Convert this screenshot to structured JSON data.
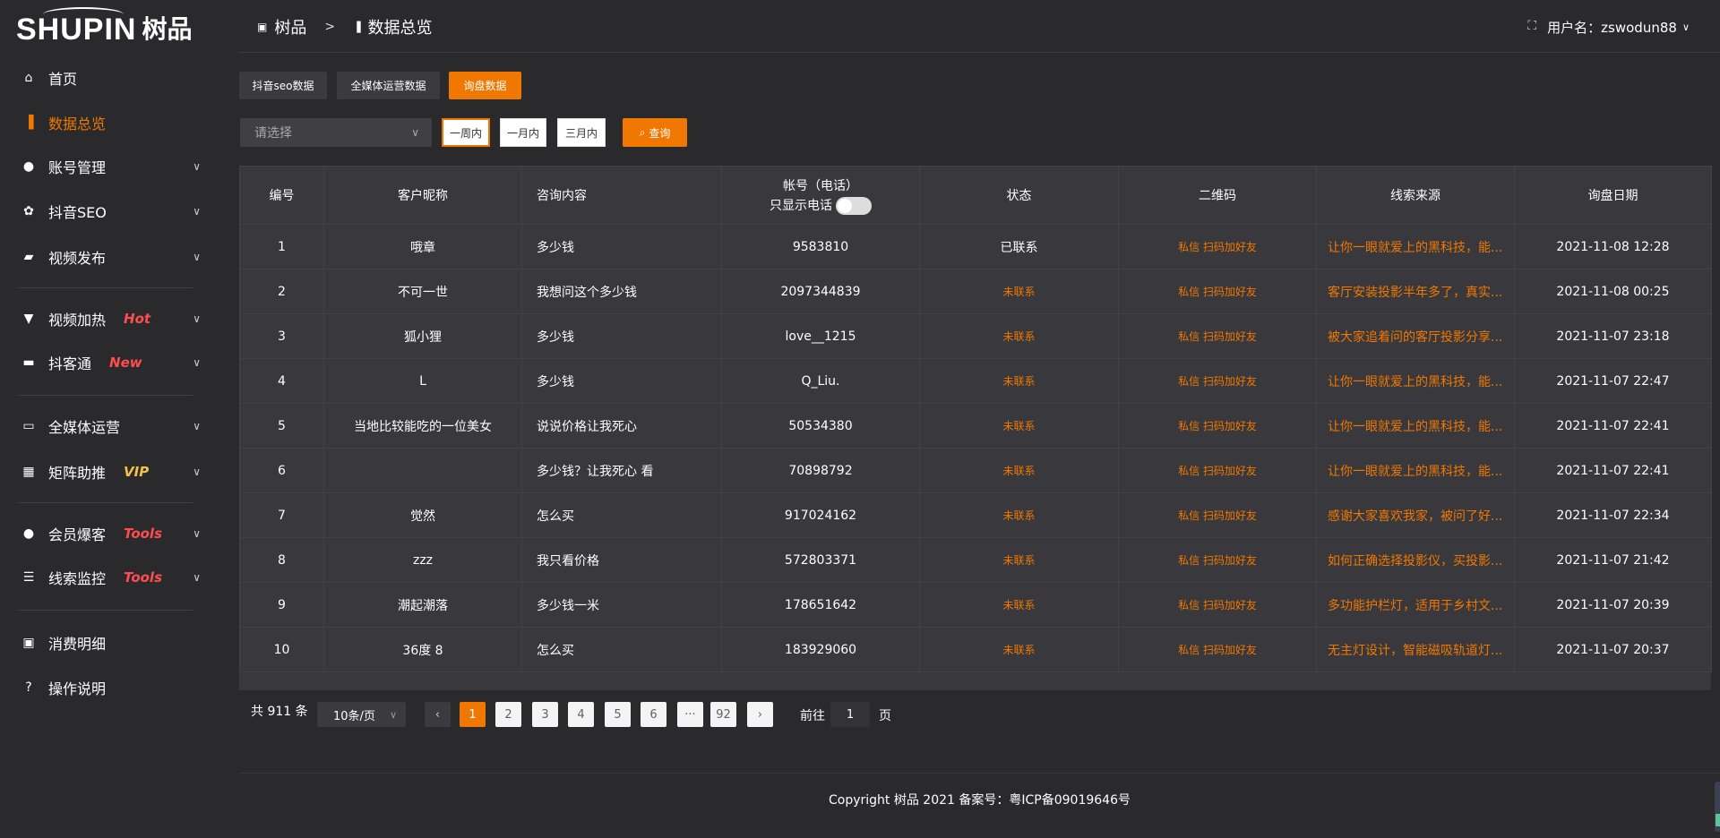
{
  "brand": {
    "logo_en": "SHUPIN",
    "logo_cn": "树品"
  },
  "breadcrumb": {
    "root": "树品",
    "separator": ">",
    "current": "数据总览"
  },
  "header": {
    "username_label": "用户名：zswodun88",
    "fullscreen_icon": "fullscreen-icon"
  },
  "sidebar": {
    "items": [
      {
        "label": "首页",
        "icon": "home-icon",
        "glyph": "⌂",
        "badge": "",
        "chevron": false,
        "active": false
      },
      {
        "label": "数据总览",
        "icon": "bar-chart-icon",
        "glyph": "▐",
        "badge": "",
        "chevron": false,
        "active": true
      },
      {
        "label": "账号管理",
        "icon": "user-icon",
        "glyph": "●",
        "badge": "",
        "chevron": true,
        "active": false
      },
      {
        "label": "抖音SEO",
        "icon": "gear-icon",
        "glyph": "✿",
        "badge": "",
        "chevron": true,
        "active": false
      },
      {
        "label": "视频发布",
        "icon": "video-camera-icon",
        "glyph": "▰",
        "badge": "",
        "chevron": true,
        "active": false
      },
      {
        "label": "视频加热",
        "icon": "billboard-icon",
        "glyph": "▼",
        "badge": "Hot",
        "badge_color": "#ff4d4f",
        "chevron": true,
        "active": false
      },
      {
        "label": "抖客通",
        "icon": "chat-icon",
        "glyph": "▬",
        "badge": "New",
        "badge_color": "#ff4d4f",
        "chevron": true,
        "active": false
      },
      {
        "label": "全媒体运营",
        "icon": "monitor-icon",
        "glyph": "▭",
        "badge": "",
        "chevron": true,
        "active": false
      },
      {
        "label": "矩阵助推",
        "icon": "grid-icon",
        "glyph": "▦",
        "badge": "VIP",
        "badge_color": "#f5c242",
        "chevron": true,
        "active": false
      },
      {
        "label": "会员爆客",
        "icon": "user-icon",
        "glyph": "●",
        "badge": "Tools",
        "badge_color": "#ff4d4f",
        "chevron": true,
        "active": false
      },
      {
        "label": "线索监控",
        "icon": "sliders-icon",
        "glyph": "☰",
        "badge": "Tools",
        "badge_color": "#ff4d4f",
        "chevron": true,
        "active": false
      },
      {
        "label": "消费明细",
        "icon": "wallet-icon",
        "glyph": "▣",
        "badge": "",
        "chevron": false,
        "active": false
      },
      {
        "label": "操作说明",
        "icon": "help-circle-icon",
        "glyph": "?",
        "badge": "",
        "chevron": false,
        "active": false
      }
    ]
  },
  "tabs": [
    {
      "label": "抖音seo数据",
      "active": false
    },
    {
      "label": "全媒体运营数据",
      "active": false
    },
    {
      "label": "询盘数据",
      "active": true
    }
  ],
  "filter": {
    "select_placeholder": "请选择",
    "ranges": [
      {
        "label": "一周内",
        "active": true
      },
      {
        "label": "一月内",
        "active": false
      },
      {
        "label": "三月内",
        "active": false
      }
    ],
    "query_label": "查询"
  },
  "table": {
    "headers": [
      "编号",
      "客户昵称",
      "咨询内容",
      "帐号（电话）",
      "状态",
      "二维码",
      "线索来源",
      "询盘日期"
    ],
    "phone_toggle_label": "只显示电话",
    "phone_toggle_on": false,
    "rows": [
      {
        "id": "1",
        "name": "哦章",
        "content": "多少钱",
        "account": "9583810",
        "status": "已联系",
        "qr": "私信 扫码加好友",
        "source": "让你一眼就爱上的黑科技，能...",
        "date": "2021-11-08 12:28"
      },
      {
        "id": "2",
        "name": "不可一世",
        "content": "我想问这个多少钱",
        "account": "2097344839",
        "status": "未联系",
        "qr": "私信 扫码加好友",
        "source": "客厅安装投影半年多了，真实...",
        "date": "2021-11-08 00:25"
      },
      {
        "id": "3",
        "name": "狐小狸",
        "content": "多少钱",
        "account": "love__1215",
        "status": "未联系",
        "qr": "私信 扫码加好友",
        "source": "被大家追着问的客厅投影分享...",
        "date": "2021-11-07 23:18"
      },
      {
        "id": "4",
        "name": "L",
        "content": "多少钱",
        "account": "Q_Liu.",
        "status": "未联系",
        "qr": "私信 扫码加好友",
        "source": "让你一眼就爱上的黑科技，能...",
        "date": "2021-11-07 22:47"
      },
      {
        "id": "5",
        "name": "当地比较能吃的一位美女",
        "content": "说说价格让我死心",
        "account": "50534380",
        "status": "未联系",
        "qr": "私信 扫码加好友",
        "source": "让你一眼就爱上的黑科技，能...",
        "date": "2021-11-07 22:41"
      },
      {
        "id": "6",
        "name": "",
        "content": "多少钱？让我死心 看",
        "account": "70898792",
        "status": "未联系",
        "qr": "私信 扫码加好友",
        "source": "让你一眼就爱上的黑科技，能...",
        "date": "2021-11-07 22:41"
      },
      {
        "id": "7",
        "name": "觉然",
        "content": "怎么买",
        "account": "917024162",
        "status": "未联系",
        "qr": "私信 扫码加好友",
        "source": "感谢大家喜欢我家，被问了好...",
        "date": "2021-11-07 22:34"
      },
      {
        "id": "8",
        "name": "zzz",
        "content": "我只看价格",
        "account": "572803371",
        "status": "未联系",
        "qr": "私信 扫码加好友",
        "source": "如何正确选择投影仪，买投影...",
        "date": "2021-11-07 21:42"
      },
      {
        "id": "9",
        "name": "潮起潮落",
        "content": "多少钱一米",
        "account": "178651642",
        "status": "未联系",
        "qr": "私信 扫码加好友",
        "source": "多功能护栏灯，适用于乡村文...",
        "date": "2021-11-07 20:39"
      },
      {
        "id": "10",
        "name": "36度 8",
        "content": "怎么买",
        "account": "183929060",
        "status": "未联系",
        "qr": "私信 扫码加好友",
        "source": "无主灯设计，智能磁吸轨道灯...",
        "date": "2021-11-07 20:37"
      }
    ]
  },
  "pagination": {
    "total_label": "共 911 条",
    "page_size": "10条/页",
    "pages": [
      "1",
      "2",
      "3",
      "4",
      "5",
      "6",
      "···",
      "92"
    ],
    "current": "1",
    "goto_label": "前往",
    "goto_value": "1",
    "page_suffix": "页"
  },
  "footer": {
    "copyright": "Copyright 树品 2021 备案号：粤ICP备09019646号"
  },
  "colors": {
    "accent": "#f07800",
    "background": "#2a2a2d",
    "table": "#38383d"
  }
}
